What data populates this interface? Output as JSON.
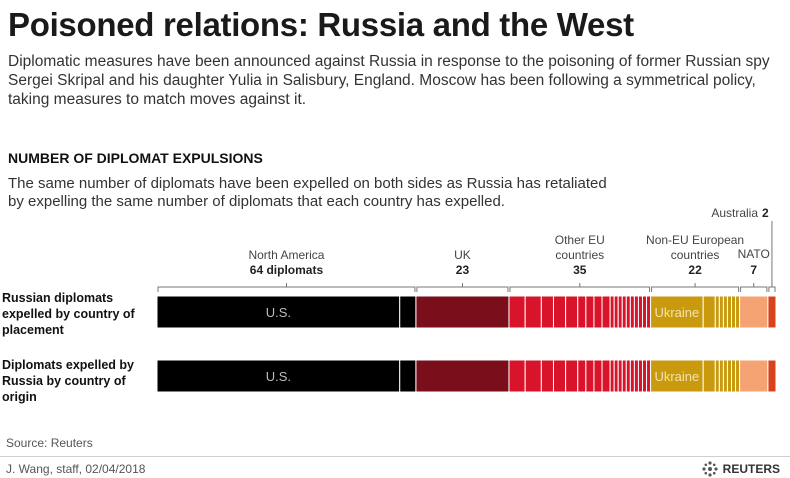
{
  "title": "Poisoned relations: Russia and the West",
  "intro": "Diplomatic measures have been announced against Russia in response to the poisoning of former Russian spy Sergei Skripal and his daughter Yulia in Salisbury, England. Moscow has been following a symmetrical policy, taking measures to match moves against it.",
  "section_title": "NUMBER OF DIPLOMAT EXPULSIONS",
  "section_desc": "The same number of diplomats have been expelled on both sides as Russia has retaliated by expelling the same number of diplomats that each country has expelled.",
  "source": "Source: Reuters",
  "credit": "J. Wang, staff,  02/04/2018",
  "logo_text": "REUTERS",
  "colors": {
    "north_america": "#000000",
    "uk": "#7a0f1b",
    "other_eu": "#d9142a",
    "non_eu": "#c99a0e",
    "nato": "#f6a373",
    "australia": "#d9431c"
  },
  "chart_data": {
    "type": "bar",
    "stacked": true,
    "orientation": "horizontal",
    "categories": [
      "Russian diplomats expelled by country of placement",
      "Diplomats expelled by Russia by country of origin"
    ],
    "groups": [
      {
        "key": "north_america",
        "name": "North America",
        "value_label": "64 diplomats",
        "value": 64,
        "segments": [
          {
            "label": "U.S.",
            "value": 60
          },
          {
            "label": "",
            "value": 4
          }
        ]
      },
      {
        "key": "uk",
        "name": "UK",
        "value_label": "23",
        "value": 23,
        "segments": [
          {
            "label": "",
            "value": 23
          }
        ]
      },
      {
        "key": "other_eu",
        "name": "Other EU countries",
        "value_label": "35",
        "value": 35,
        "segments": [
          {
            "label": "",
            "value": 4
          },
          {
            "label": "",
            "value": 4
          },
          {
            "label": "",
            "value": 3
          },
          {
            "label": "",
            "value": 3
          },
          {
            "label": "",
            "value": 3
          },
          {
            "label": "",
            "value": 2
          },
          {
            "label": "",
            "value": 2
          },
          {
            "label": "",
            "value": 2
          },
          {
            "label": "",
            "value": 2
          },
          {
            "label": "",
            "value": 1
          },
          {
            "label": "",
            "value": 1
          },
          {
            "label": "",
            "value": 1
          },
          {
            "label": "",
            "value": 1
          },
          {
            "label": "",
            "value": 1
          },
          {
            "label": "",
            "value": 1
          },
          {
            "label": "",
            "value": 1
          },
          {
            "label": "",
            "value": 1
          },
          {
            "label": "",
            "value": 1
          },
          {
            "label": "",
            "value": 1
          }
        ]
      },
      {
        "key": "non_eu",
        "name": "Non-EU European countries",
        "value_label": "22",
        "value": 22,
        "segments": [
          {
            "label": "Ukraine",
            "value": 13
          },
          {
            "label": "",
            "value": 3
          },
          {
            "label": "",
            "value": 1
          },
          {
            "label": "",
            "value": 1
          },
          {
            "label": "",
            "value": 1
          },
          {
            "label": "",
            "value": 1
          },
          {
            "label": "",
            "value": 1
          },
          {
            "label": "",
            "value": 1
          }
        ]
      },
      {
        "key": "nato",
        "name": "NATO",
        "value_label": "7",
        "value": 7,
        "segments": [
          {
            "label": "",
            "value": 7
          }
        ]
      },
      {
        "key": "australia",
        "name": "Australia",
        "value_label": "2",
        "value": 2,
        "segments": [
          {
            "label": "",
            "value": 2
          }
        ]
      }
    ]
  }
}
